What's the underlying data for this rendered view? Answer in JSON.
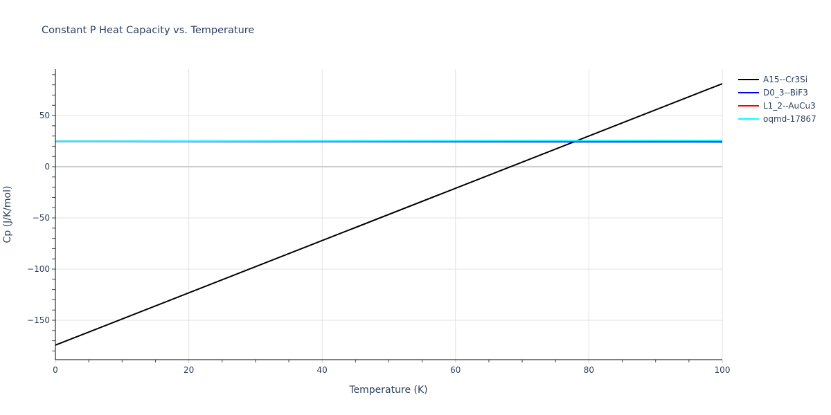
{
  "chart_data": {
    "type": "line",
    "title": "Constant P Heat Capacity vs. Temperature",
    "xlabel": "Temperature (K)",
    "ylabel": "Cp (J/K/mol)",
    "xlim": [
      0,
      100
    ],
    "ylim": [
      -188.5,
      95.3
    ],
    "x_ticks": [
      0,
      20,
      40,
      60,
      80,
      100
    ],
    "y_ticks": [
      -150,
      -100,
      -50,
      0,
      50
    ],
    "y_tick_labels": [
      "−150",
      "−100",
      "−50",
      "0",
      "50"
    ],
    "grid": true,
    "legend_position": "right",
    "series": [
      {
        "name": "A15--Cr3Si",
        "color": "#000000",
        "x": [
          0,
          100
        ],
        "y": [
          -174.3,
          81.1
        ]
      },
      {
        "name": "D0_3--BiF3",
        "color": "#0000ff",
        "x": [
          0,
          100
        ],
        "y": [
          24.8,
          24.3
        ]
      },
      {
        "name": "L1_2--AuCu3",
        "color": "#ff0000",
        "x": [
          0,
          100
        ],
        "y": [
          25.0,
          25.0
        ]
      },
      {
        "name": "oqmd-17867",
        "color": "#00ffff",
        "x": [
          0,
          100
        ],
        "y": [
          24.9,
          25.7
        ]
      }
    ]
  }
}
